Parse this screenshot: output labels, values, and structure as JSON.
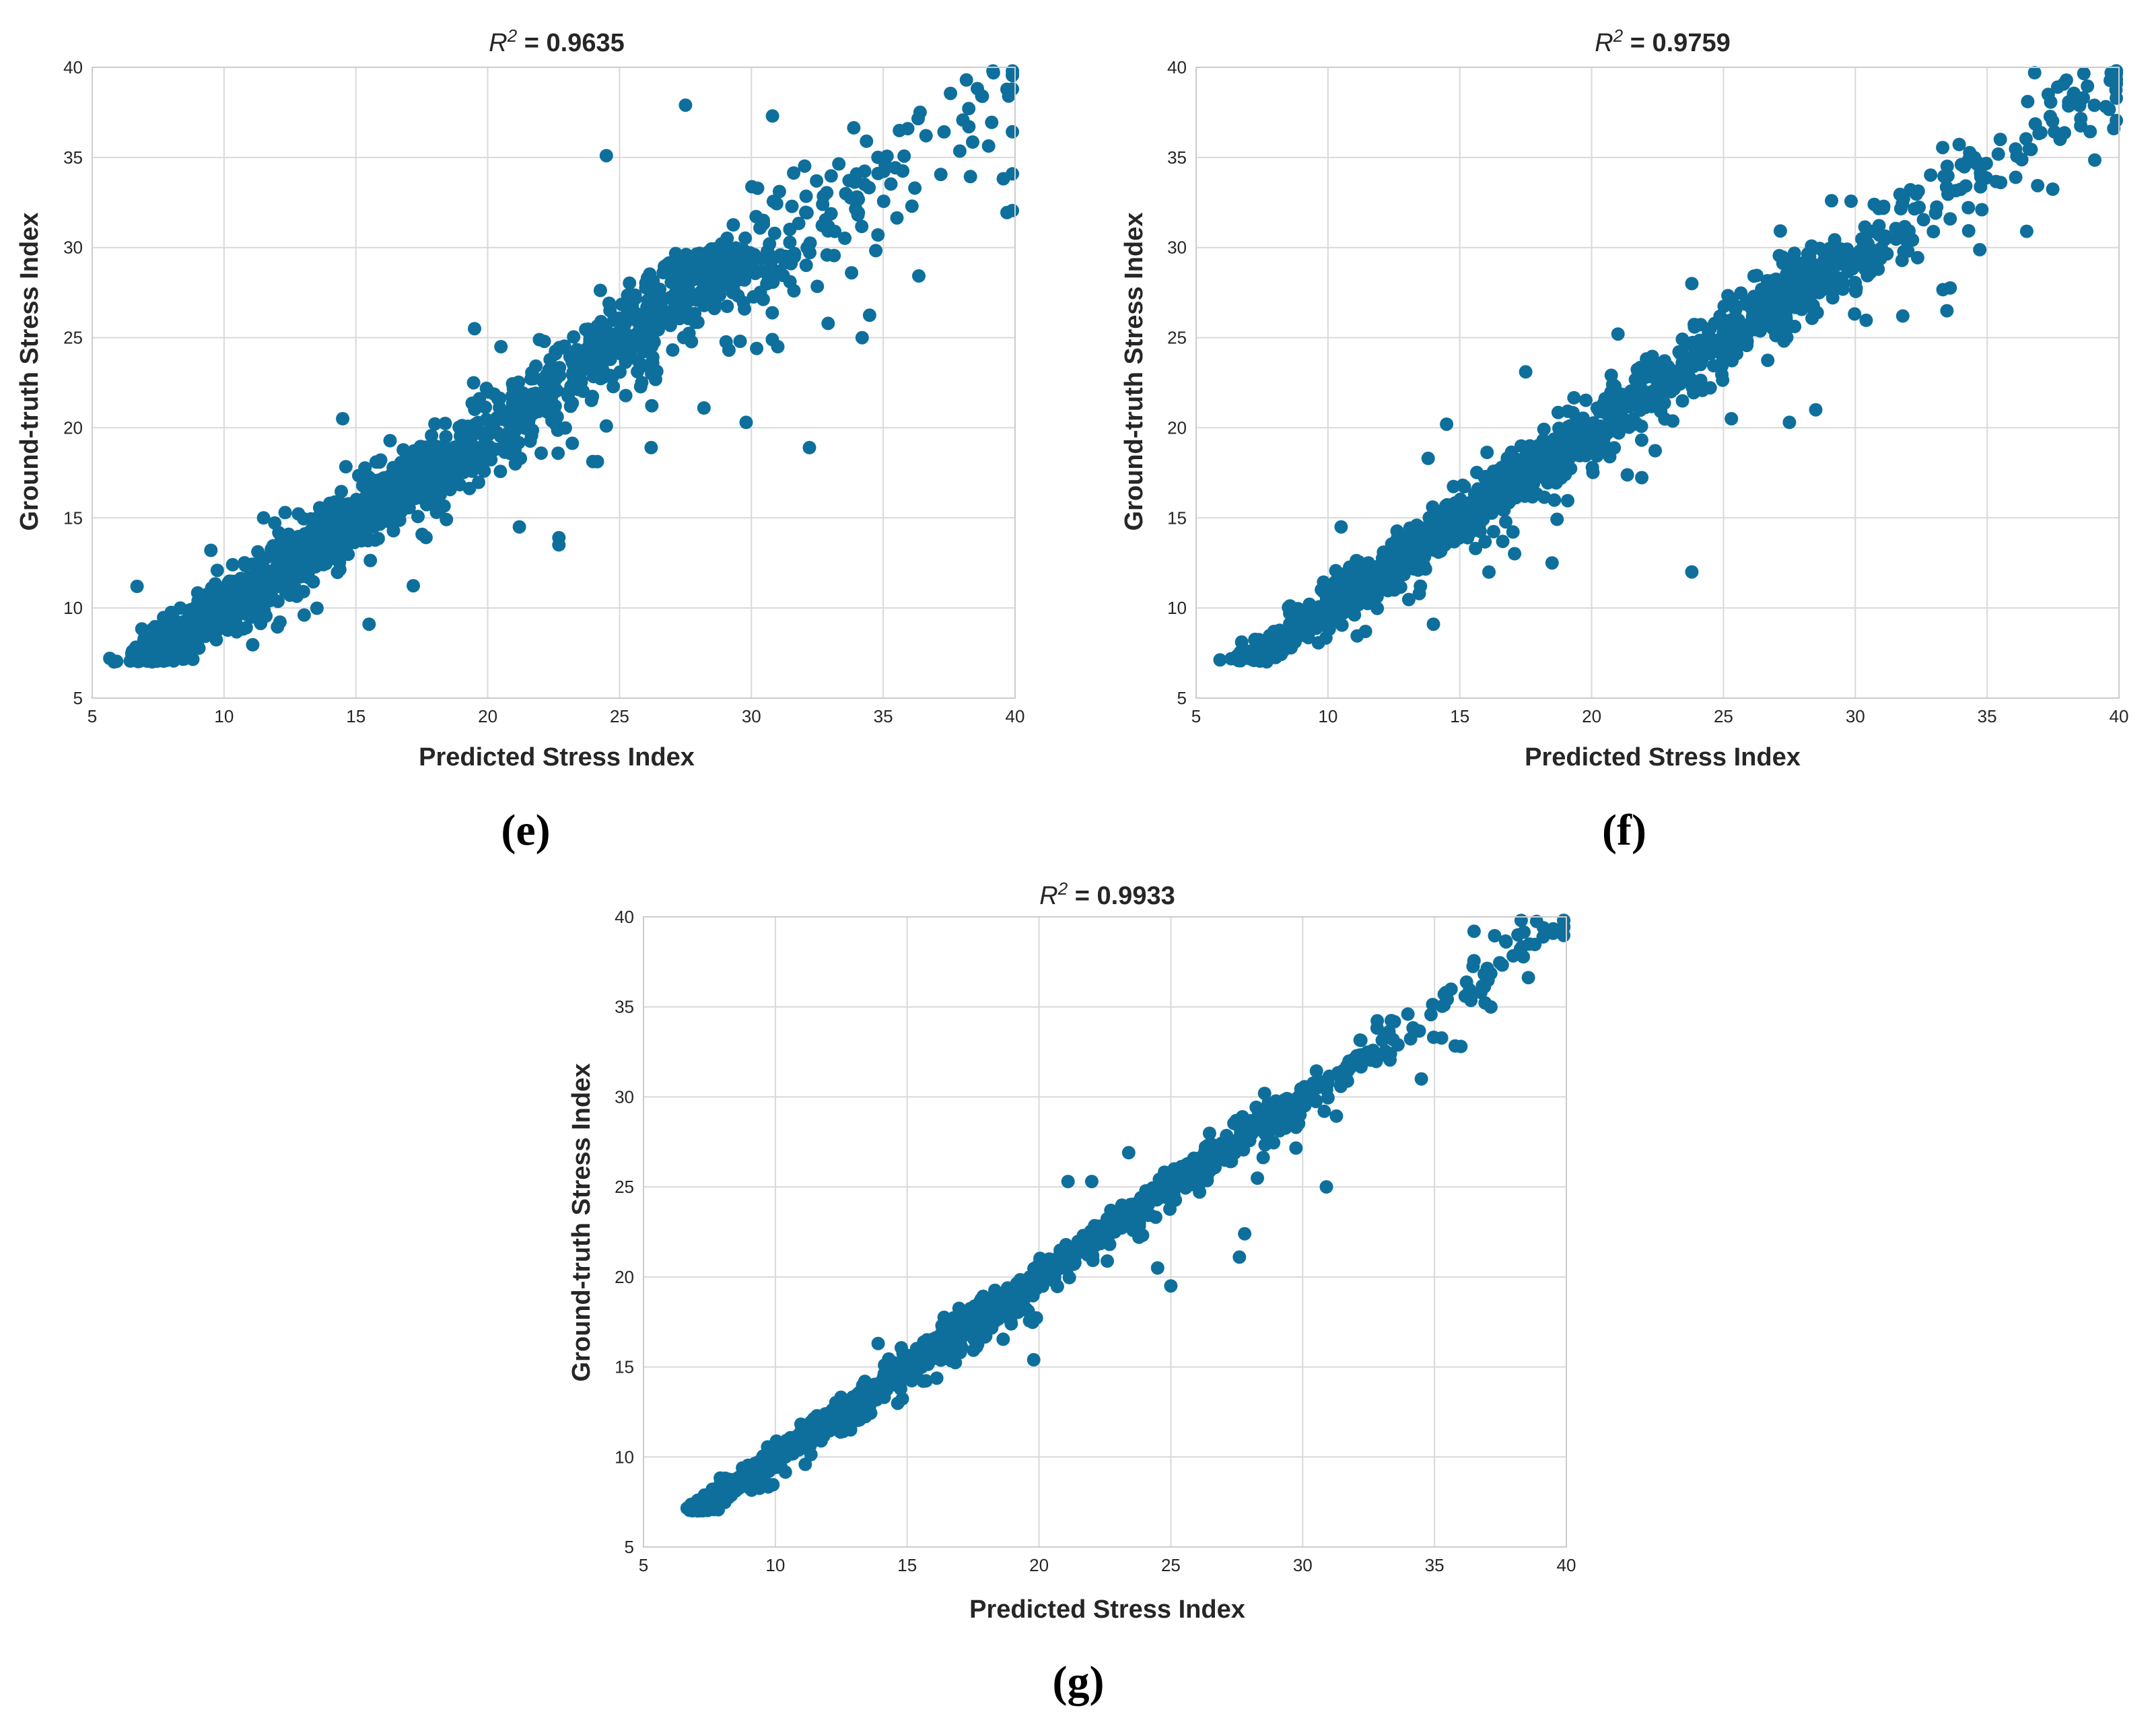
{
  "figure": {
    "colors": {
      "marker": "#0e6f9c",
      "grid": "#d9d9d9",
      "frame": "#cccccc"
    }
  },
  "chart_data": [
    {
      "id": "e",
      "type": "scatter",
      "panel_tag": "(e)",
      "title_prefix": "R",
      "title_superscript": "2",
      "title_suffix": " = 0.9635",
      "r2": 0.9635,
      "xlabel": "Predicted Stress Index",
      "ylabel": "Ground-truth Stress Index",
      "xlim": [
        5,
        40
      ],
      "ylim": [
        5,
        40
      ],
      "xticks": [
        5,
        10,
        15,
        20,
        25,
        30,
        35,
        40
      ],
      "yticks": [
        5,
        10,
        15,
        20,
        25,
        30,
        35,
        40
      ],
      "grid": true,
      "n_points_approx": 1600,
      "residual_sd": 1.1,
      "outliers": [
        [
          6.7,
          11.2
        ],
        [
          9.5,
          13.2
        ],
        [
          11.5,
          15.0
        ],
        [
          14.5,
          20.5
        ],
        [
          15.5,
          9.1
        ],
        [
          19.5,
          25.5
        ],
        [
          20.5,
          24.5
        ],
        [
          21.2,
          14.5
        ],
        [
          22.7,
          13.5
        ],
        [
          22.7,
          13.9
        ],
        [
          24.5,
          35.1
        ],
        [
          24.5,
          20.1
        ],
        [
          26.2,
          18.9
        ],
        [
          27.5,
          37.9
        ],
        [
          28.2,
          21.1
        ],
        [
          29.8,
          20.3
        ],
        [
          30.8,
          37.3
        ],
        [
          30.2,
          24.4
        ],
        [
          31.0,
          24.5
        ],
        [
          32.2,
          18.9
        ],
        [
          34.2,
          25.0
        ],
        [
          33.8,
          28.6
        ],
        [
          34.8,
          30.7
        ],
        [
          36.2,
          33.3
        ]
      ]
    },
    {
      "id": "f",
      "type": "scatter",
      "panel_tag": "(f)",
      "title_prefix": "R",
      "title_superscript": "2",
      "title_suffix": " = 0.9759",
      "r2": 0.9759,
      "xlabel": "Predicted Stress Index",
      "ylabel": "Ground-truth Stress Index",
      "xlim": [
        5,
        40
      ],
      "ylim": [
        5,
        40
      ],
      "xticks": [
        5,
        10,
        15,
        20,
        25,
        30,
        35,
        40
      ],
      "yticks": [
        5,
        10,
        15,
        20,
        25,
        30,
        35,
        40
      ],
      "grid": true,
      "n_points_approx": 1600,
      "residual_sd": 0.8,
      "outliers": [
        [
          10.5,
          14.5
        ],
        [
          13.8,
          18.3
        ],
        [
          14.5,
          20.2
        ],
        [
          14.0,
          9.1
        ],
        [
          17.5,
          23.1
        ],
        [
          18.5,
          12.5
        ],
        [
          21.0,
          25.2
        ],
        [
          23.8,
          12.0
        ],
        [
          23.8,
          28.0
        ],
        [
          25.3,
          20.5
        ],
        [
          27.5,
          20.3
        ],
        [
          28.5,
          21.0
        ],
        [
          29.1,
          32.6
        ],
        [
          31.8,
          26.2
        ],
        [
          34.8,
          32.1
        ],
        [
          36.5,
          30.9
        ],
        [
          35.5,
          36.0
        ],
        [
          39.8,
          36.6
        ],
        [
          36.8,
          39.7
        ]
      ]
    },
    {
      "id": "g",
      "type": "scatter",
      "panel_tag": "(g)",
      "title_prefix": "R",
      "title_superscript": "2",
      "title_suffix": " = 0.9933",
      "r2": 0.9933,
      "xlabel": "Predicted Stress Index",
      "ylabel": "Ground-truth Stress Index",
      "xlim": [
        5,
        40
      ],
      "ylim": [
        5,
        40
      ],
      "xticks": [
        5,
        10,
        15,
        20,
        25,
        30,
        35,
        40
      ],
      "yticks": [
        5,
        10,
        15,
        20,
        25,
        30,
        35,
        40
      ],
      "grid": true,
      "n_points_approx": 1500,
      "residual_sd": 0.45,
      "outliers": [
        [
          13.9,
          16.3
        ],
        [
          19.8,
          15.4
        ],
        [
          21.1,
          25.3
        ],
        [
          22.0,
          25.3
        ],
        [
          23.4,
          26.9
        ],
        [
          24.5,
          20.5
        ],
        [
          25.0,
          19.5
        ],
        [
          27.6,
          21.1
        ],
        [
          27.8,
          22.4
        ],
        [
          30.9,
          25.0
        ],
        [
          34.5,
          31.0
        ],
        [
          36.0,
          32.8
        ],
        [
          36.5,
          39.2
        ]
      ]
    }
  ]
}
